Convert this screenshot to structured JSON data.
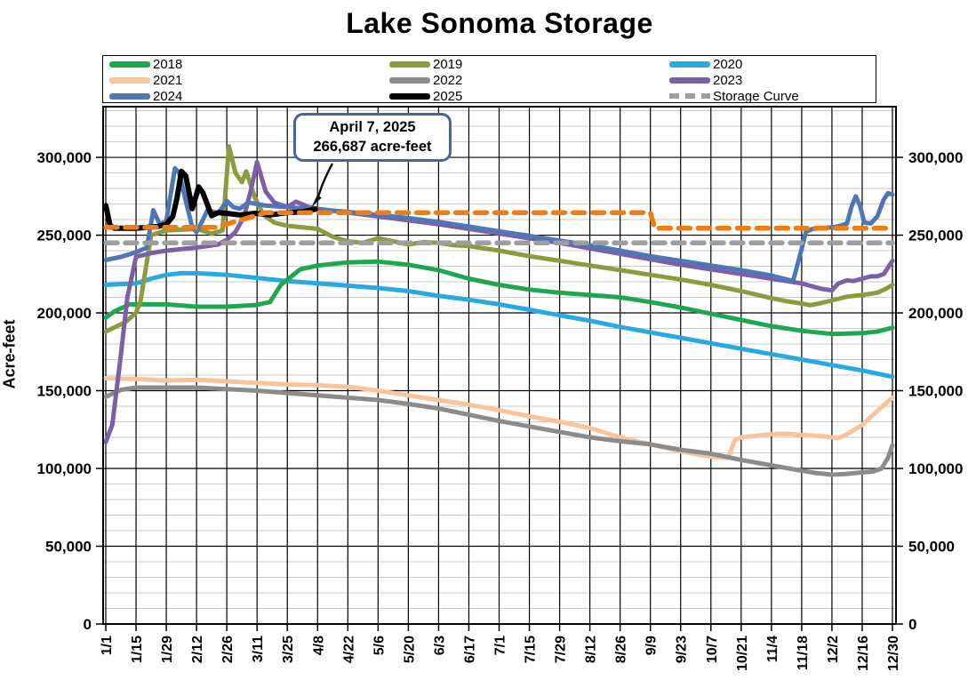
{
  "title": "Lake Sonoma Storage",
  "y_axis": {
    "label": "Acre-feet",
    "tick_labels": [
      "0",
      "50,000",
      "100,000",
      "150,000",
      "200,000",
      "250,000",
      "300,000"
    ],
    "tick_values": [
      0,
      50000,
      100000,
      150000,
      200000,
      250000,
      300000
    ]
  },
  "x_axis": {
    "tick_labels": [
      "1/1",
      "1/15",
      "1/29",
      "2/12",
      "2/26",
      "3/11",
      "3/25",
      "4/8",
      "4/22",
      "5/6",
      "5/20",
      "6/3",
      "6/17",
      "7/1",
      "7/15",
      "7/29",
      "8/12",
      "8/26",
      "9/9",
      "9/23",
      "10/7",
      "10/21",
      "11/4",
      "11/18",
      "12/2",
      "12/16",
      "12/30"
    ],
    "tick_days": [
      1,
      15,
      29,
      43,
      57,
      71,
      85,
      99,
      113,
      127,
      141,
      155,
      169,
      183,
      197,
      211,
      225,
      239,
      253,
      267,
      281,
      295,
      309,
      323,
      337,
      351,
      365
    ]
  },
  "legend": [
    {
      "label": "2018",
      "color": "#1FA750",
      "dashed": false
    },
    {
      "label": "2019",
      "color": "#8D9B3E",
      "dashed": false
    },
    {
      "label": "2020",
      "color": "#28AAE1",
      "dashed": false
    },
    {
      "label": "2021",
      "color": "#F9C499",
      "dashed": false
    },
    {
      "label": "2022",
      "color": "#8B8B8B",
      "dashed": false
    },
    {
      "label": "2023",
      "color": "#7C5FA5",
      "dashed": false
    },
    {
      "label": "2024",
      "color": "#4F77B7",
      "dashed": false
    },
    {
      "label": "2025",
      "color": "#000000",
      "dashed": false
    },
    {
      "label": "Storage Curve",
      "color": "#9E9E9E",
      "dashed": true
    }
  ],
  "annotation": {
    "line1": "April 7, 2025",
    "line2": "266,687 acre-feet",
    "border_color": "#44689D",
    "target_day": 98,
    "target_value": 266687
  },
  "colors": {
    "grid_minor": "#CACACA",
    "grid_major": "#000000",
    "plot_border": "#000000",
    "orange_dashed": "#F07D13"
  },
  "chart_data": {
    "type": "line",
    "title": "Lake Sonoma Storage",
    "xlabel": "",
    "ylabel": "Acre-feet",
    "x_unit": "day-of-year (biweekly ticks 1/1 - 12/30)",
    "ylim": [
      0,
      332600
    ],
    "grid": true,
    "legend_position": "top",
    "draw_order": [
      3,
      4,
      2,
      0,
      1,
      5,
      6,
      7,
      8,
      9
    ],
    "series": [
      {
        "name": "2018",
        "color": "#1FA750",
        "width": 5,
        "dashed": false,
        "x": [
          1,
          5,
          12,
          29,
          43,
          57,
          70,
          77,
          82,
          91,
          99,
          113,
          127,
          141,
          155,
          169,
          183,
          197,
          211,
          225,
          239,
          253,
          267,
          281,
          295,
          309,
          323,
          337,
          351,
          358,
          365
        ],
        "values": [
          197000,
          201000,
          205500,
          205500,
          204000,
          204000,
          205000,
          207000,
          218000,
          228000,
          230500,
          232500,
          233000,
          231000,
          227500,
          222000,
          218000,
          215000,
          213000,
          211500,
          210000,
          207000,
          203500,
          199500,
          195500,
          191500,
          188500,
          186500,
          187000,
          188000,
          190500
        ]
      },
      {
        "name": "2019",
        "color": "#8D9B3E",
        "width": 5,
        "dashed": false,
        "x": [
          1,
          10,
          15,
          17,
          22,
          29,
          43,
          50,
          55,
          58,
          61,
          64,
          66,
          70,
          74,
          79,
          85,
          99,
          106,
          113,
          120,
          127,
          134,
          141,
          148,
          155,
          162,
          169,
          183,
          197,
          211,
          225,
          239,
          253,
          267,
          281,
          295,
          309,
          316,
          323,
          327,
          331,
          337,
          344,
          351,
          358,
          362,
          365
        ],
        "values": [
          188000,
          194000,
          200000,
          207000,
          250000,
          253000,
          254000,
          251000,
          253000,
          307000,
          290000,
          284000,
          291000,
          274000,
          263000,
          258000,
          256000,
          254000,
          249000,
          246000,
          245000,
          248000,
          246000,
          244000,
          245500,
          245000,
          243500,
          243000,
          240000,
          236500,
          233500,
          230500,
          227500,
          224500,
          221500,
          218000,
          214000,
          209500,
          207500,
          206000,
          205000,
          206000,
          208000,
          210500,
          211500,
          213000,
          215500,
          218000
        ]
      },
      {
        "name": "2020",
        "color": "#28AAE1",
        "width": 5,
        "dashed": false,
        "x": [
          1,
          15,
          22,
          29,
          36,
          43,
          57,
          71,
          85,
          99,
          113,
          127,
          141,
          155,
          169,
          183,
          197,
          211,
          225,
          239,
          253,
          267,
          281,
          295,
          309,
          323,
          337,
          351,
          365
        ],
        "values": [
          218000,
          219000,
          222000,
          224500,
          225500,
          225500,
          224500,
          222500,
          220500,
          219000,
          217500,
          216000,
          214000,
          211000,
          208500,
          205500,
          202000,
          198500,
          195000,
          191000,
          187500,
          184000,
          180500,
          177000,
          173500,
          170000,
          166500,
          163000,
          159000
        ]
      },
      {
        "name": "2021",
        "color": "#F9C499",
        "width": 5,
        "dashed": false,
        "x": [
          1,
          15,
          29,
          43,
          57,
          71,
          85,
          99,
          113,
          127,
          141,
          155,
          169,
          183,
          197,
          211,
          225,
          239,
          253,
          267,
          281,
          289,
          292,
          295,
          302,
          309,
          316,
          323,
          330,
          337,
          340,
          344,
          351,
          358,
          365
        ],
        "values": [
          158000,
          157500,
          156500,
          157000,
          156000,
          155000,
          154000,
          153500,
          152500,
          150000,
          147000,
          144000,
          141000,
          137500,
          133500,
          130000,
          126000,
          120000,
          115500,
          111000,
          107500,
          106800,
          118000,
          120000,
          121000,
          122000,
          122300,
          121500,
          121000,
          120000,
          119500,
          122000,
          128000,
          137000,
          145500
        ]
      },
      {
        "name": "2022",
        "color": "#8B8B8B",
        "width": 5,
        "dashed": false,
        "x": [
          1,
          8,
          15,
          29,
          43,
          57,
          71,
          85,
          99,
          113,
          127,
          141,
          155,
          169,
          183,
          197,
          211,
          225,
          239,
          253,
          267,
          281,
          295,
          309,
          323,
          330,
          337,
          344,
          351,
          356,
          360,
          363,
          365
        ],
        "values": [
          146000,
          150500,
          152000,
          152000,
          152000,
          151000,
          150000,
          148500,
          147000,
          145500,
          144000,
          141500,
          138500,
          134500,
          130500,
          127000,
          123500,
          120000,
          117500,
          115500,
          112000,
          109500,
          105500,
          102000,
          98500,
          97000,
          96000,
          96500,
          97500,
          98000,
          100000,
          107000,
          115000
        ]
      },
      {
        "name": "2023",
        "color": "#7C5FA5",
        "width": 5,
        "dashed": false,
        "x": [
          1,
          4,
          8,
          11,
          15,
          22,
          29,
          43,
          53,
          57,
          61,
          65,
          68,
          71,
          75,
          79,
          85,
          89,
          95,
          99,
          113,
          127,
          141,
          155,
          169,
          183,
          197,
          211,
          225,
          239,
          253,
          267,
          281,
          295,
          309,
          323,
          332,
          337,
          340,
          344,
          347,
          351,
          355,
          358,
          361,
          365
        ],
        "values": [
          117000,
          128000,
          173000,
          210000,
          236000,
          238500,
          240000,
          242000,
          244000,
          247000,
          252000,
          262000,
          278000,
          297000,
          278000,
          271000,
          268000,
          271500,
          268000,
          267000,
          264500,
          262000,
          259500,
          257000,
          254000,
          251000,
          248000,
          245000,
          241500,
          238000,
          234500,
          231000,
          228000,
          225000,
          222000,
          219000,
          215500,
          214500,
          219000,
          221000,
          220500,
          222000,
          223500,
          223500,
          225000,
          233500
        ]
      },
      {
        "name": "2024",
        "color": "#4F77B7",
        "width": 5,
        "dashed": false,
        "x": [
          1,
          8,
          15,
          20,
          23,
          26,
          29,
          31,
          33,
          35,
          38,
          41,
          43,
          46,
          48,
          53,
          57,
          60,
          63,
          67,
          71,
          75,
          85,
          99,
          113,
          127,
          141,
          155,
          169,
          183,
          197,
          211,
          225,
          239,
          253,
          267,
          281,
          295,
          309,
          319,
          322,
          325,
          328,
          337,
          341,
          344,
          346,
          348,
          350,
          352,
          355,
          358,
          361,
          363,
          365
        ],
        "values": [
          234000,
          236000,
          239000,
          242000,
          266000,
          257000,
          259000,
          276000,
          293000,
          290000,
          272000,
          255000,
          252000,
          260000,
          266000,
          264000,
          272000,
          268000,
          267000,
          271000,
          270000,
          269000,
          268000,
          266500,
          265000,
          263000,
          261000,
          258500,
          255500,
          252500,
          249500,
          246500,
          243500,
          240000,
          236500,
          233500,
          230500,
          227500,
          224000,
          220500,
          236000,
          252000,
          254000,
          255000,
          256000,
          257500,
          268000,
          275000,
          269000,
          258000,
          257500,
          262000,
          273000,
          277000,
          276000
        ]
      },
      {
        "name": "2025",
        "color": "#000000",
        "width": 6,
        "dashed": false,
        "x": [
          1,
          3,
          5,
          15,
          25,
          29,
          32,
          34,
          36,
          38,
          41,
          44,
          46,
          50,
          53,
          57,
          63,
          70,
          77,
          85,
          92,
          98
        ],
        "values": [
          269000,
          256000,
          254500,
          254500,
          255500,
          257000,
          262000,
          274000,
          291000,
          288000,
          267000,
          281000,
          277000,
          262500,
          264500,
          264000,
          263000,
          264000,
          263000,
          264500,
          265000,
          266687
        ]
      },
      {
        "name": "Storage Curve",
        "color": "#9E9E9E",
        "width": 5.5,
        "dashed": true,
        "x": [
          1,
          365
        ],
        "values": [
          245000,
          245000
        ]
      },
      {
        "name": "(unlabeled orange dashed curve)",
        "color": "#F07D13",
        "width": 5.5,
        "dashed": true,
        "x": [
          1,
          52,
          75,
          253,
          255,
          365
        ],
        "values": [
          255000,
          255000,
          264500,
          264500,
          254500,
          254500
        ]
      }
    ]
  }
}
